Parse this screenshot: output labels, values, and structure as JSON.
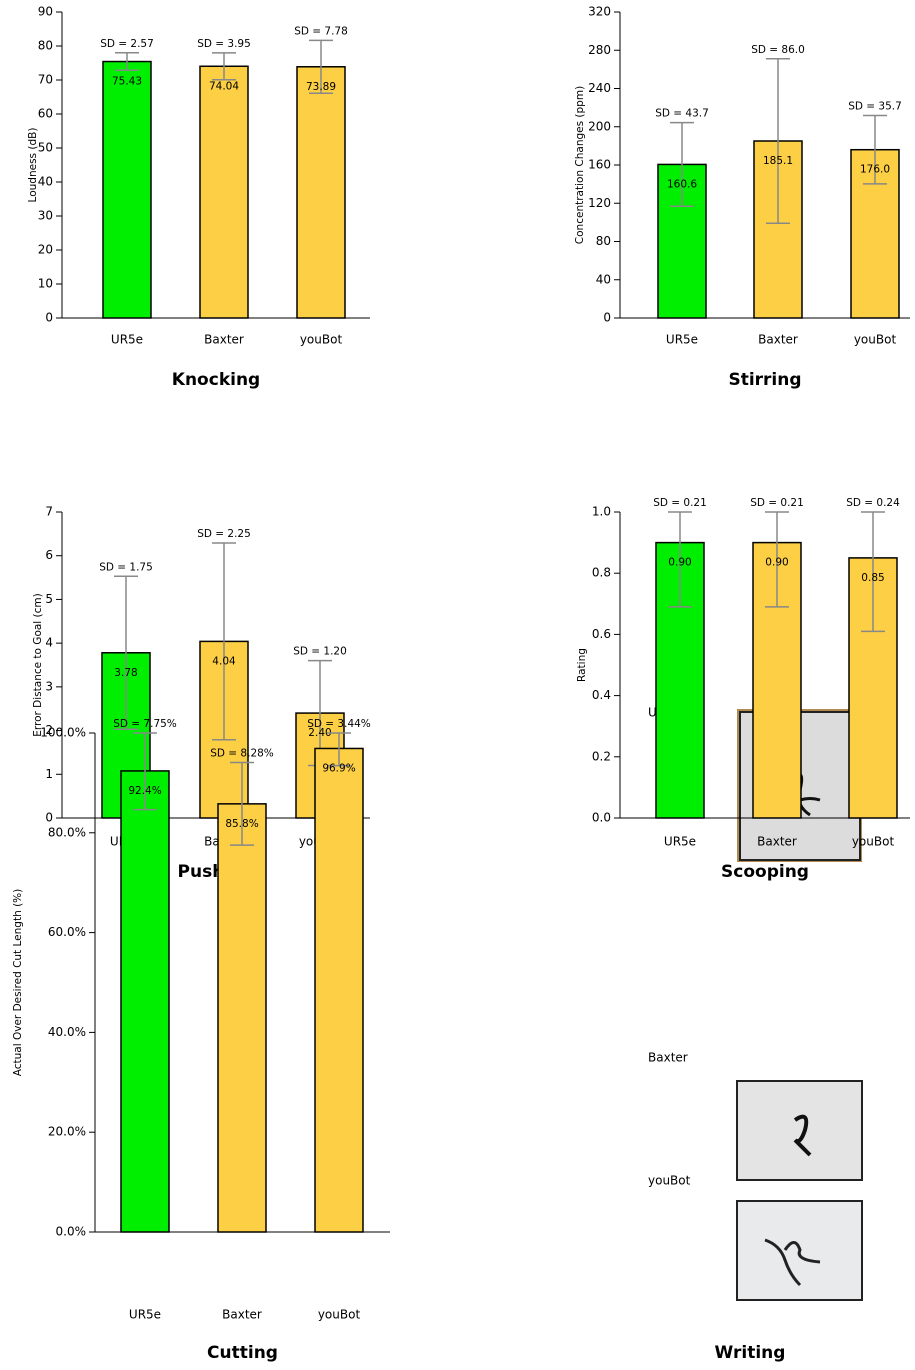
{
  "chart_data": [
    {
      "type": "bar",
      "title": "Knocking",
      "ylabel": "Loudness (dB)",
      "categories": [
        "UR5e",
        "Baxter",
        "youBot"
      ],
      "values": [
        75.43,
        74.04,
        73.89
      ],
      "errors": [
        2.57,
        3.95,
        7.78
      ],
      "error_labels": [
        "SD = 2.57",
        "SD = 3.95",
        "SD = 7.78"
      ],
      "colors": [
        "#00ee00",
        "#fccf45",
        "#fccf45"
      ],
      "ylim": [
        0,
        90
      ],
      "yticks": [
        0,
        10,
        20,
        30,
        40,
        50,
        60,
        70,
        80,
        90
      ]
    },
    {
      "type": "bar",
      "title": "Stirring",
      "ylabel": "Concentration Changes (ppm)",
      "categories": [
        "UR5e",
        "Baxter",
        "youBot"
      ],
      "values": [
        160.6,
        185.1,
        176.0
      ],
      "value_labels": [
        "160.6",
        "185.1",
        "176.0"
      ],
      "errors": [
        43.7,
        86.0,
        35.7
      ],
      "error_labels": [
        "SD = 43.7",
        "SD = 86.0",
        "SD = 35.7"
      ],
      "colors": [
        "#00ee00",
        "#fccf45",
        "#fccf45"
      ],
      "ylim": [
        0,
        320
      ],
      "yticks": [
        0,
        40,
        80,
        120,
        160,
        200,
        240,
        280,
        320
      ]
    },
    {
      "type": "bar",
      "title": "Pushing",
      "ylabel": "Error Distance to Goal (cm)",
      "categories": [
        "UR5e",
        "Baxter",
        "youBot"
      ],
      "values": [
        3.78,
        4.04,
        2.4
      ],
      "value_labels": [
        "3.78",
        "4.04",
        "2.40"
      ],
      "errors": [
        1.75,
        2.25,
        1.2
      ],
      "error_labels": [
        "SD = 1.75",
        "SD = 2.25",
        "SD = 1.20"
      ],
      "colors": [
        "#00ee00",
        "#fccf45",
        "#fccf45"
      ],
      "ylim": [
        0,
        7
      ],
      "yticks": [
        0,
        1,
        2,
        3,
        4,
        5,
        6,
        7
      ]
    },
    {
      "type": "bar",
      "title": "Scooping",
      "ylabel": "Rating",
      "categories": [
        "UR5e",
        "Baxter",
        "youBot"
      ],
      "values": [
        0.9,
        0.9,
        0.85
      ],
      "value_labels": [
        "0.90",
        "0.90",
        "0.85"
      ],
      "errors": [
        0.21,
        0.21,
        0.24
      ],
      "error_labels": [
        "SD = 0.21",
        "SD = 0.21",
        "SD = 0.24"
      ],
      "colors": [
        "#00ee00",
        "#fccf45",
        "#fccf45"
      ],
      "ylim": [
        0,
        1
      ],
      "yticks": [
        {
          "value": 0,
          "label": "0.0"
        },
        0.2,
        0.4,
        0.6,
        0.8,
        {
          "value": 1,
          "label": "1.0"
        }
      ]
    },
    {
      "type": "bar",
      "title": "Cutting",
      "ylabel": "Actual Over Desired Cut Length (%)",
      "categories": [
        "UR5e",
        "Baxter",
        "youBot"
      ],
      "values": [
        92.4,
        85.8,
        96.9
      ],
      "value_labels": [
        "92.4%",
        "85.8%",
        "96.9%"
      ],
      "errors": [
        7.75,
        8.28,
        3.44
      ],
      "error_labels": [
        "SD = 7.75%",
        "SD = 8.28%",
        "SD = 3.44%"
      ],
      "colors": [
        "#00ee00",
        "#fccf45",
        "#fccf45"
      ],
      "ylim": [
        0,
        100
      ],
      "yticks": [
        {
          "value": 0,
          "label": "0.0%"
        },
        {
          "value": 20,
          "label": "20.0%"
        },
        {
          "value": 40,
          "label": "40.0%"
        },
        {
          "value": 60,
          "label": "60.0%"
        },
        {
          "value": 80,
          "label": "80.0%"
        },
        {
          "value": 100,
          "label": "100.0%"
        }
      ]
    }
  ],
  "writing": {
    "title": "Writing",
    "labels": [
      "UR5e",
      "Baxter",
      "youBot"
    ]
  }
}
